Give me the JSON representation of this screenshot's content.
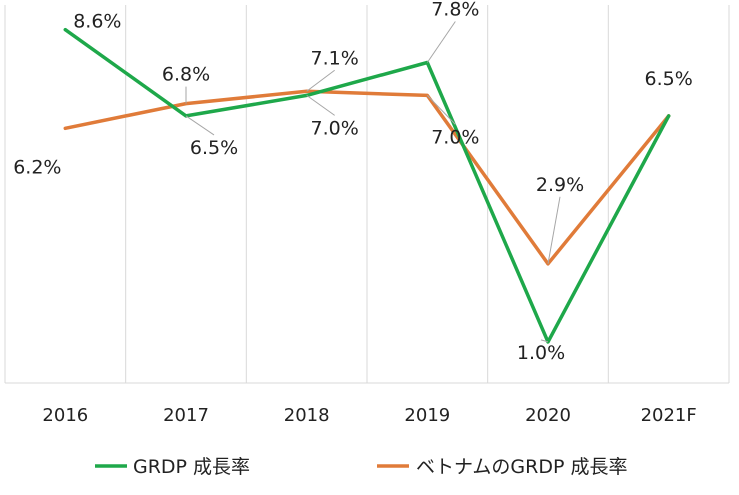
{
  "chart_data": {
    "type": "line",
    "categories": [
      "2016",
      "2017",
      "2018",
      "2019",
      "2020",
      "2021F"
    ],
    "series": [
      {
        "name": "GRDP 成長率",
        "color": "#1ea84a",
        "values": [
          8.6,
          6.5,
          7.0,
          7.8,
          1.0,
          6.5
        ],
        "labels": [
          "8.6%",
          "6.5%",
          "7.0%",
          "7.8%",
          "1.0%",
          "6.5%"
        ]
      },
      {
        "name": "ベトナムのGRDP 成長率",
        "color": "#e07b39",
        "values": [
          6.2,
          6.8,
          7.1,
          7.0,
          2.9,
          6.5
        ],
        "labels": [
          "6.2%",
          "6.8%",
          "7.1%",
          "7.0%",
          "2.9%",
          ""
        ]
      }
    ],
    "ylim": [
      0,
      9.2
    ],
    "grid": "vertical",
    "legend": "bottom",
    "title": "",
    "xlabel": "",
    "ylabel": ""
  }
}
